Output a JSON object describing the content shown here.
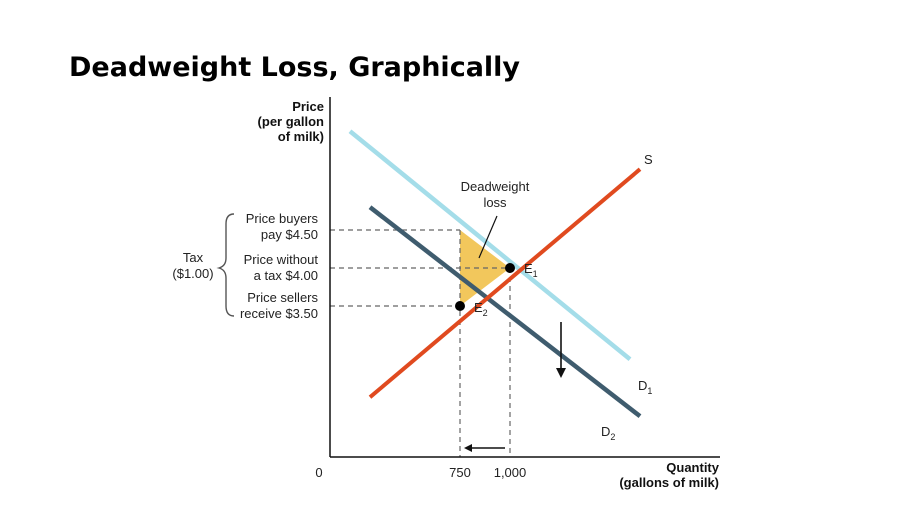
{
  "slide": {
    "title": "Deadweight Loss, Graphically"
  },
  "colors": {
    "supply": "#e04a1f",
    "demand_1": "#a4dde9",
    "demand_2": "#3f5c6e",
    "deadweight_fill": "#f2c75c",
    "guide_lines": "#666666",
    "axes": "#111111"
  },
  "chart_data": {
    "type": "line",
    "title": "",
    "xlabel_line1": "Quantity",
    "xlabel_line2": "(gallons of milk)",
    "ylabel_line1": "Price",
    "ylabel_line2": "(per gallon",
    "ylabel_line3": "of milk)",
    "origin_label": "0",
    "x_ticks": [
      "750",
      "1,000"
    ],
    "series": [
      {
        "name": "S",
        "kind": "supply",
        "points": [
          [
            300,
            2.3
          ],
          [
            1650,
            5.3
          ]
        ]
      },
      {
        "name": "D1",
        "label_main": "D",
        "label_sub": "1",
        "kind": "demand",
        "points": [
          [
            200,
            5.8
          ],
          [
            1600,
            2.8
          ]
        ]
      },
      {
        "name": "D2",
        "label_main": "D",
        "label_sub": "2",
        "kind": "demand",
        "points": [
          [
            300,
            4.8
          ],
          [
            1650,
            2.05
          ]
        ]
      }
    ],
    "equilibria": [
      {
        "name": "E1",
        "label_main": "E",
        "label_sub": "1",
        "quantity": 1000,
        "price": 4.0
      },
      {
        "name": "E2",
        "label_main": "E",
        "label_sub": "2",
        "quantity": 750,
        "price": 3.5
      }
    ],
    "deadweight_loss": {
      "label_line1": "Deadweight",
      "label_line2": "loss",
      "vertices": [
        [
          750,
          4.5
        ],
        [
          750,
          3.5
        ],
        [
          1000,
          4.0
        ]
      ]
    },
    "price_labels": {
      "buyers_line1": "Price buyers",
      "buyers_line2": "pay $4.50",
      "buyers_value": 4.5,
      "no_tax_line1": "Price without",
      "no_tax_line2": "a tax $4.00",
      "no_tax_value": 4.0,
      "sellers_line1": "Price sellers",
      "sellers_line2": "receive $3.50",
      "sellers_value": 3.5
    },
    "tax": {
      "label_line1": "Tax",
      "label_line2": "($1.00)",
      "amount": 1.0
    },
    "annotations": {
      "demand_shift": "down",
      "quantity_shift": "left"
    }
  }
}
